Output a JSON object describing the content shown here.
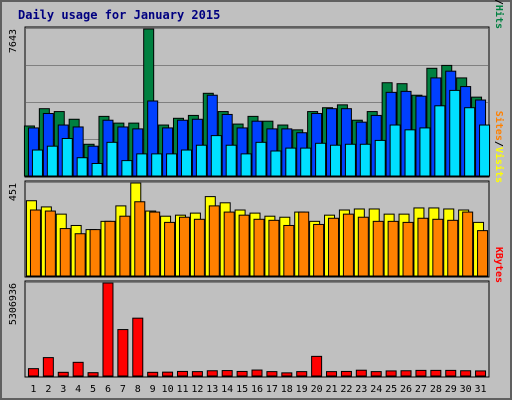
{
  "colors": {
    "background": "#c0c0c0",
    "panel": "#c0c0c0",
    "gridline": "#808080",
    "title": "#000080",
    "hits": "#008040",
    "files": "#0040ff",
    "pages": "#00e0ff",
    "visits": "#ffff00",
    "sites": "#ff8000",
    "kbytes": "#ff0000",
    "weekend_day": "#008040",
    "weekday": "#000000"
  },
  "chart_data": {
    "type": "bar",
    "title": "Daily usage for January 2015",
    "categories": [
      "1",
      "2",
      "3",
      "4",
      "5",
      "6",
      "7",
      "8",
      "9",
      "10",
      "11",
      "12",
      "13",
      "14",
      "15",
      "16",
      "17",
      "18",
      "19",
      "20",
      "21",
      "22",
      "23",
      "24",
      "25",
      "26",
      "27",
      "28",
      "29",
      "30",
      "31"
    ],
    "weekend_days": [
      "3",
      "4",
      "10",
      "11",
      "17",
      "18",
      "24",
      "25",
      "31"
    ],
    "grid": true,
    "panels": [
      {
        "id": "top",
        "ylim": [
          0,
          7643
        ],
        "max_label": "7643",
        "legend": [
          {
            "text": "Hits",
            "color": "#008040"
          },
          {
            "text": "/",
            "color": "#000000"
          },
          {
            "text": "Files",
            "color": "#0040ff"
          },
          {
            "text": "/",
            "color": "#000000"
          },
          {
            "text": "Pages",
            "color": "#00e0ff"
          }
        ],
        "series": [
          {
            "name": "Hits",
            "color": "#008040",
            "values": [
              2600,
              3500,
              3350,
              2950,
              1650,
              3100,
              2750,
              2750,
              7643,
              2650,
              3000,
              3150,
              4300,
              3350,
              2700,
              3100,
              2850,
              2650,
              2400,
              3350,
              3550,
              3700,
              2900,
              3350,
              4850,
              4800,
              4200,
              5600,
              5750,
              5100,
              4100
            ]
          },
          {
            "name": "Files",
            "color": "#0040ff",
            "values": [
              2500,
              3250,
              2650,
              2550,
              1550,
              2900,
              2550,
              2450,
              3900,
              2500,
              2900,
              2950,
              4200,
              3200,
              2500,
              2850,
              2450,
              2450,
              2250,
              3250,
              3500,
              3500,
              2800,
              3150,
              4350,
              4400,
              4150,
              5100,
              5450,
              4650,
              3950
            ]
          },
          {
            "name": "Pages",
            "color": "#00e0ff",
            "values": [
              1350,
              1550,
              1950,
              950,
              650,
              1750,
              800,
              1150,
              1150,
              1150,
              1350,
              1600,
              2100,
              1600,
              1150,
              1750,
              1300,
              1450,
              1450,
              1700,
              1600,
              1650,
              1650,
              1850,
              2650,
              2400,
              2500,
              3650,
              4450,
              3550,
              2650
            ]
          }
        ]
      },
      {
        "id": "middle",
        "ylim": [
          0,
          451
        ],
        "max_label": "451",
        "legend": [
          {
            "text": "Visits",
            "color": "#ffff00"
          },
          {
            "text": "/",
            "color": "#000000"
          },
          {
            "text": "Sites",
            "color": "#ff8000"
          }
        ],
        "series": [
          {
            "name": "Visits",
            "color": "#ffff00",
            "values": [
              365,
              335,
              300,
              245,
              225,
              265,
              340,
              451,
              315,
              290,
              295,
              305,
              385,
              355,
              320,
              305,
              290,
              285,
              310,
              265,
              295,
              320,
              325,
              325,
              300,
              300,
              330,
              330,
              325,
              320,
              260
            ]
          },
          {
            "name": "Sites",
            "color": "#ff8000",
            "values": [
              320,
              315,
              230,
              205,
              225,
              265,
              290,
              360,
              310,
              260,
              285,
              275,
              340,
              310,
              295,
              275,
              270,
              245,
              310,
              250,
              280,
              300,
              285,
              265,
              265,
              260,
              280,
              275,
              270,
              310,
              220
            ]
          }
        ]
      },
      {
        "id": "bottom",
        "ylim": [
          0,
          5306936
        ],
        "max_label": "5306936",
        "legend": [
          {
            "text": "KBytes",
            "color": "#ff0000"
          }
        ],
        "series": [
          {
            "name": "KBytes",
            "color": "#ff0000",
            "values": [
              420000,
              1050000,
              210000,
              780000,
              190000,
              5306936,
              2650000,
              3300000,
              210000,
              220000,
              260000,
              250000,
              300000,
              310000,
              260000,
              340000,
              250000,
              180000,
              250000,
              1120000,
              250000,
              260000,
              330000,
              250000,
              290000,
              300000,
              320000,
              320000,
              320000,
              300000,
              290000
            ]
          }
        ]
      }
    ]
  }
}
